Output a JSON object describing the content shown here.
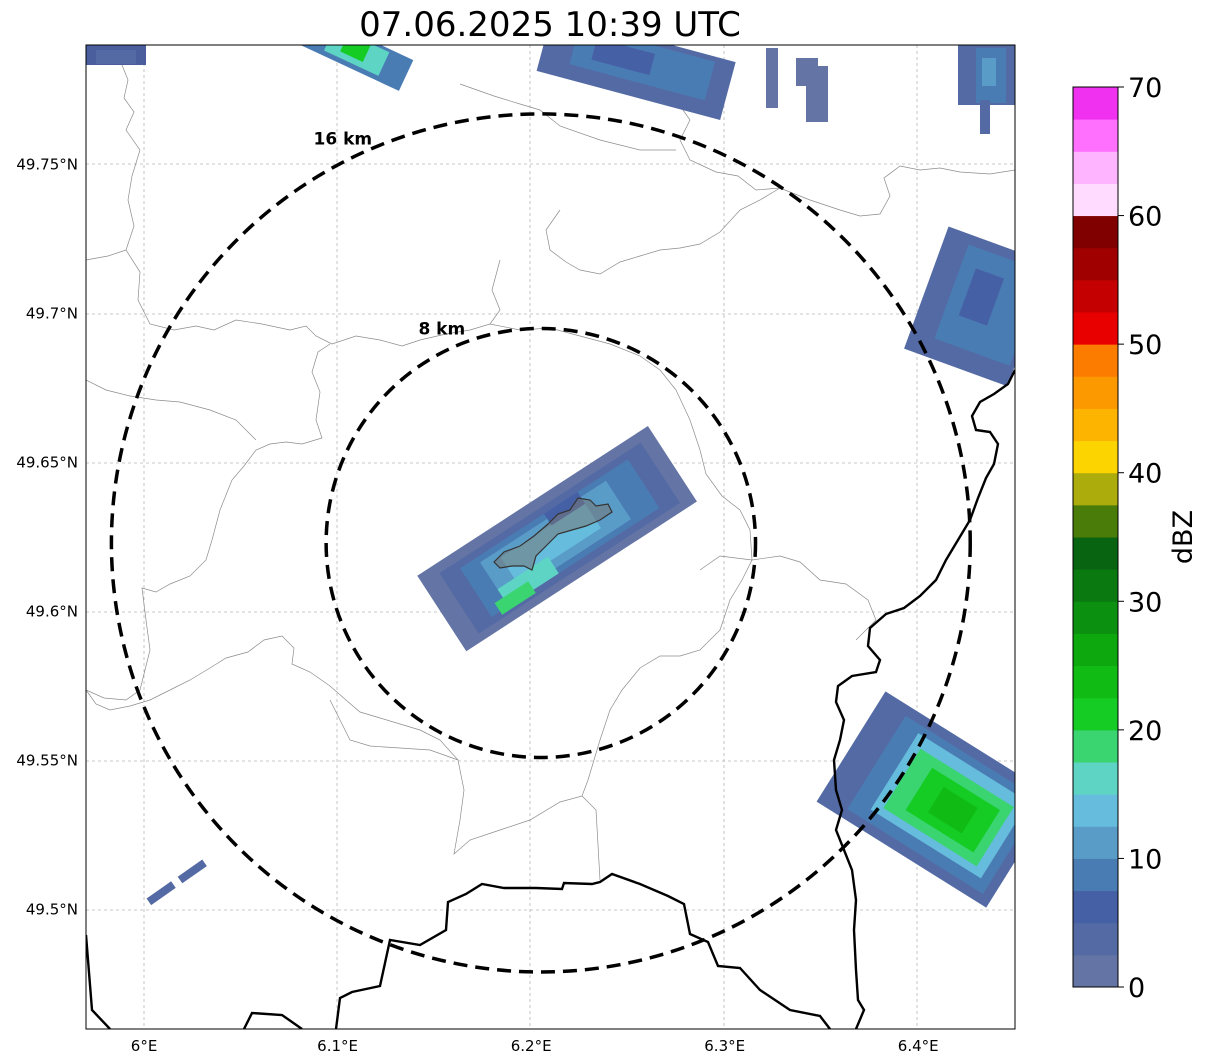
{
  "title": "07.06.2025 10:39 UTC",
  "map": {
    "lon_ticks": [
      "6°E",
      "6.1°E",
      "6.2°E",
      "6.3°E",
      "6.4°E"
    ],
    "lat_ticks": [
      "49.75°N",
      "49.7°N",
      "49.65°N",
      "49.6°N",
      "49.55°N",
      "49.5°N"
    ],
    "grid": true,
    "center": {
      "lon": 6.205,
      "lat": 49.623
    },
    "rings": [
      {
        "label": "8 km",
        "radius_km": 8
      },
      {
        "label": "16 km",
        "radius_km": 16
      }
    ],
    "extent": {
      "lon_min": 5.97,
      "lon_max": 6.45,
      "lat_min": 49.46,
      "lat_max": 49.79
    }
  },
  "colorbar": {
    "label": "dBZ",
    "ticks": [
      "0",
      "10",
      "20",
      "30",
      "40",
      "50",
      "60",
      "70"
    ],
    "min": 0,
    "max": 70,
    "colors": [
      "#6474a4",
      "#546aa4",
      "#4660a6",
      "#4a7cb4",
      "#5a9cc8",
      "#66bcdc",
      "#5ed4c4",
      "#3ad470",
      "#14cc24",
      "#10bc14",
      "#0ca80e",
      "#0c9010",
      "#0a7a10",
      "#086410",
      "#4a7c0a",
      "#acac0c",
      "#fcd400",
      "#fcb400",
      "#fc9800",
      "#fc7c00",
      "#e80000",
      "#c40000",
      "#a00000",
      "#800000",
      "#ffdcff",
      "#ffb4ff",
      "#ff70ff",
      "#f032f0"
    ]
  }
}
